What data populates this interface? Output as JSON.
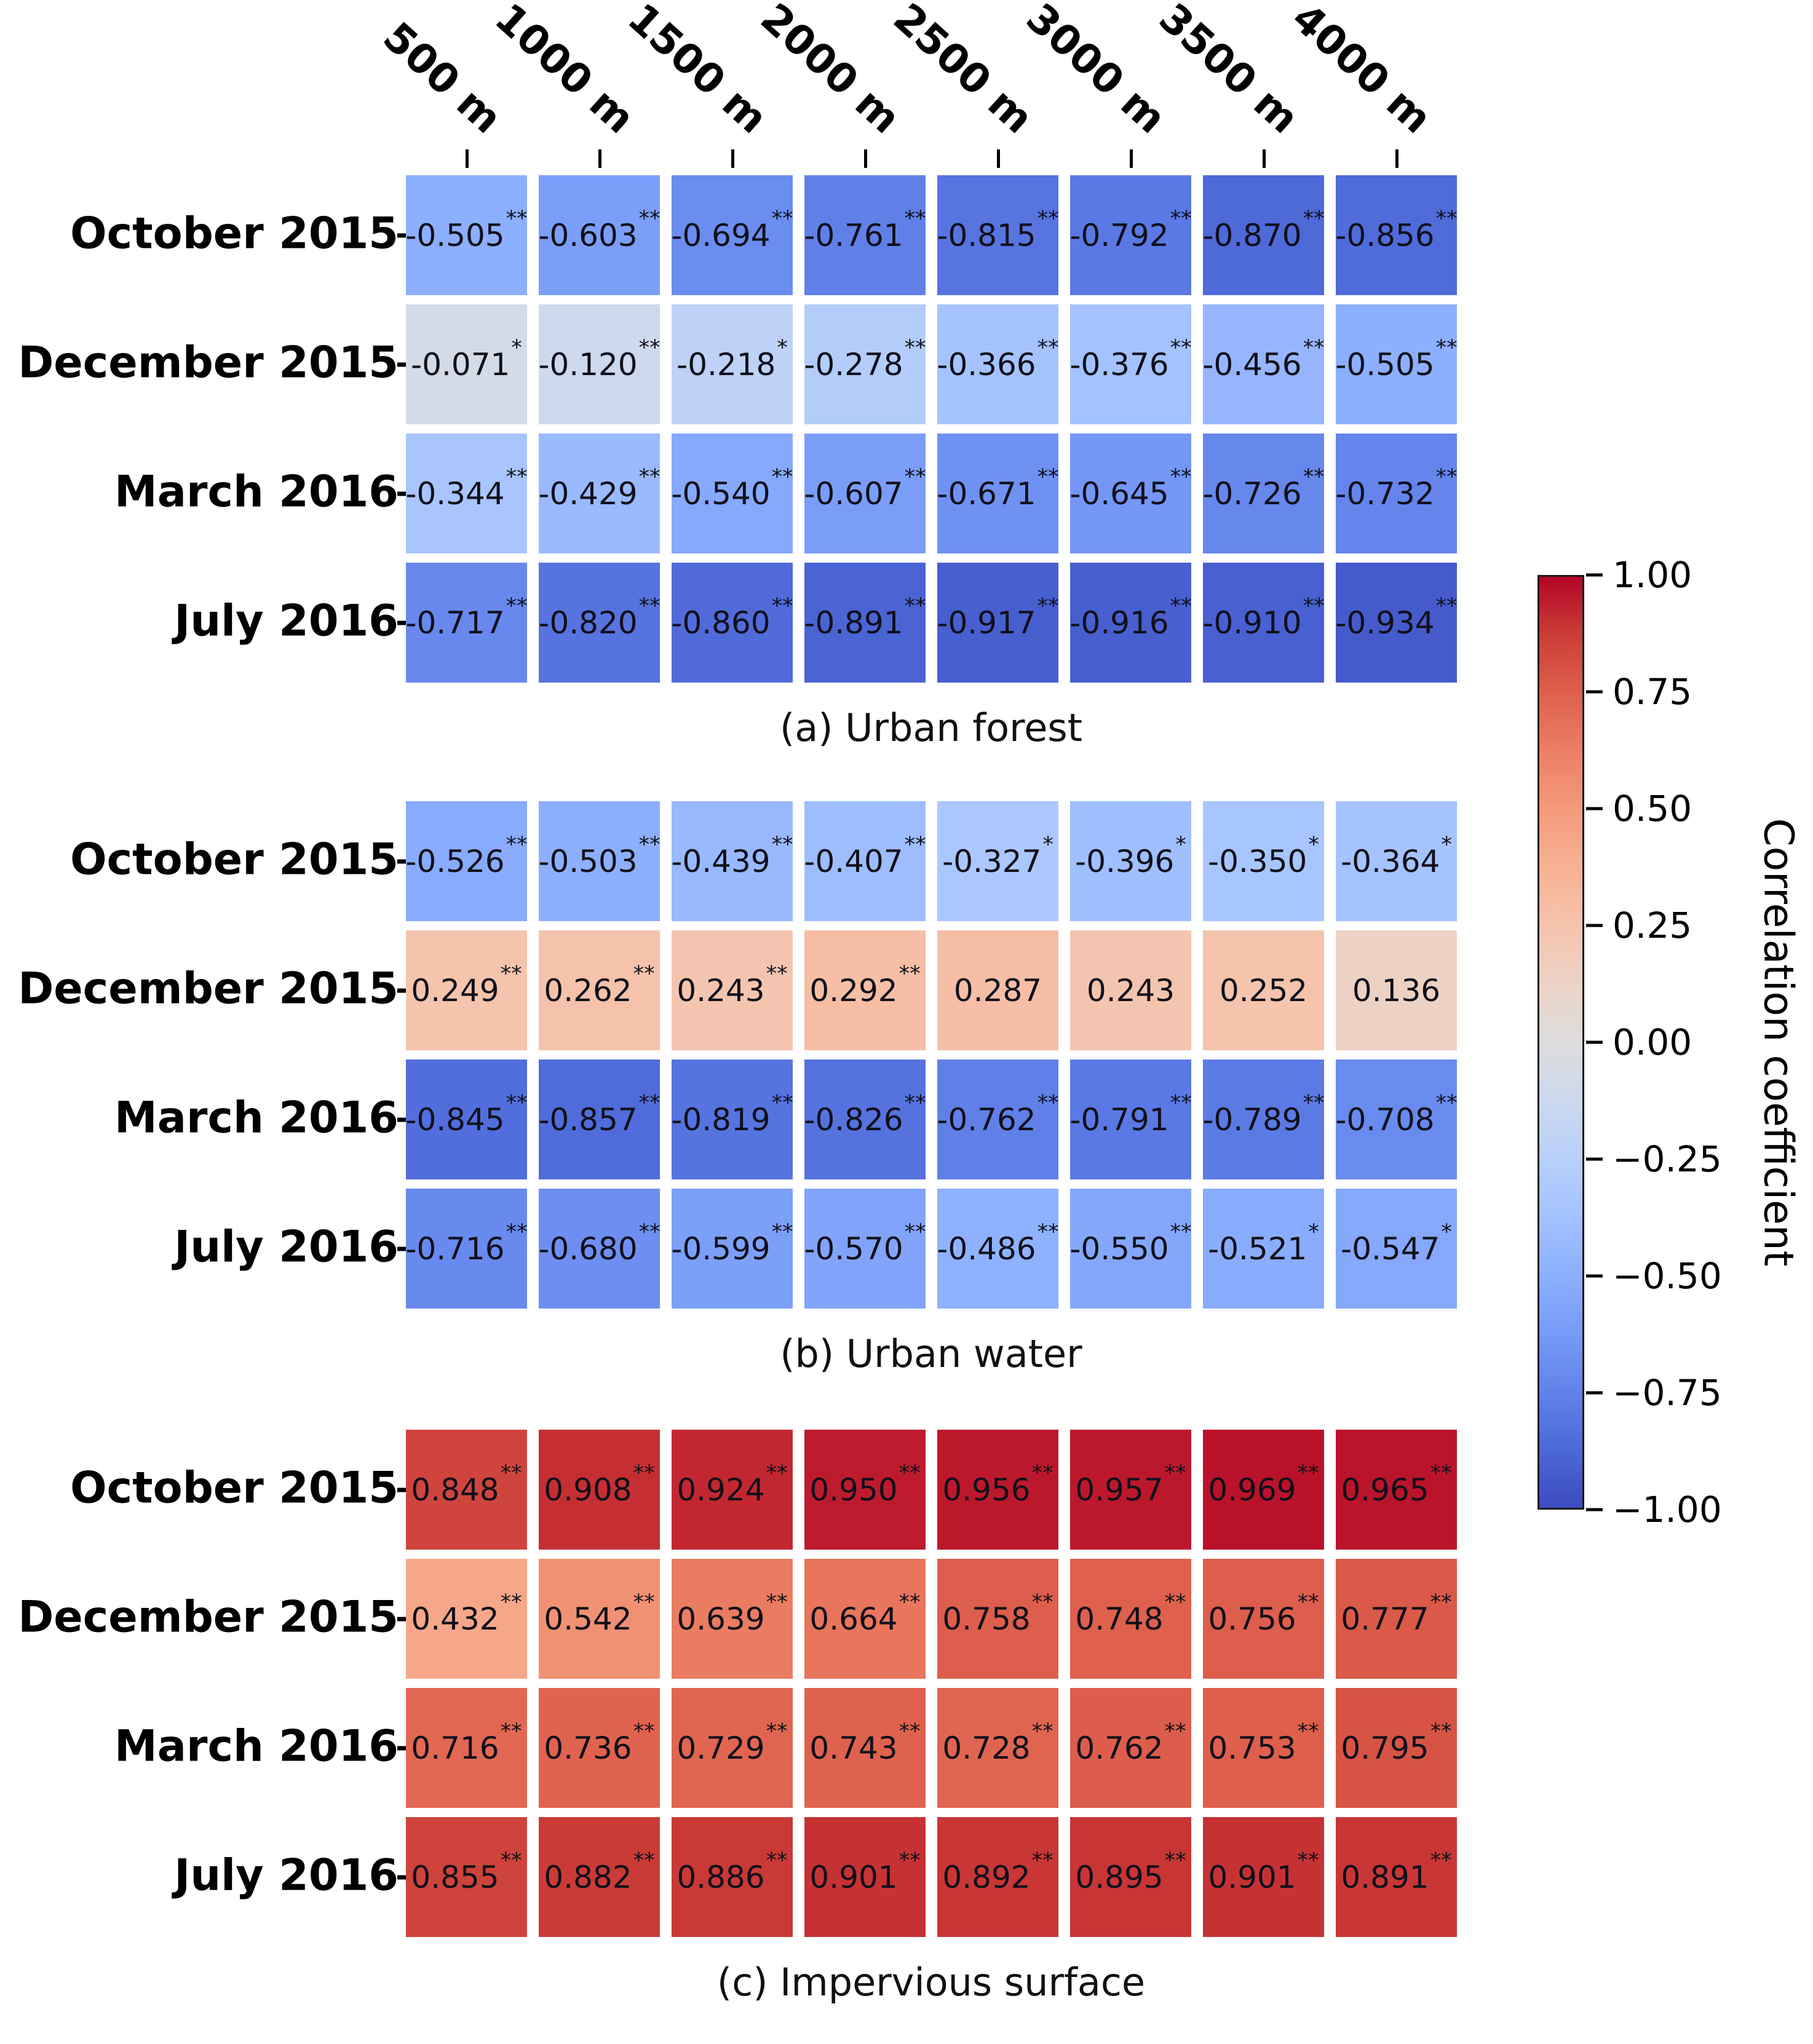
{
  "chart_data": {
    "type": "heatmap",
    "x_categories": [
      "500 m",
      "1000 m",
      "1500 m",
      "2000 m",
      "2500 m",
      "3000 m",
      "3500 m",
      "4000 m"
    ],
    "y_categories": [
      "October 2015",
      "December 2015",
      "March 2016",
      "July 2016"
    ],
    "value_range": [
      -1,
      1
    ],
    "grid": false,
    "colormap": "coolwarm",
    "colormap_stops": [
      [
        0.0,
        59,
        76,
        192
      ],
      [
        0.0625,
        77,
        104,
        215
      ],
      [
        0.125,
        98,
        130,
        234
      ],
      [
        0.1875,
        119,
        154,
        247
      ],
      [
        0.25,
        141,
        176,
        254
      ],
      [
        0.3125,
        163,
        194,
        255
      ],
      [
        0.375,
        184,
        208,
        249
      ],
      [
        0.4375,
        204,
        217,
        238
      ],
      [
        0.5,
        221,
        221,
        221
      ],
      [
        0.5625,
        236,
        211,
        197
      ],
      [
        0.625,
        245,
        196,
        173
      ],
      [
        0.6875,
        247,
        177,
        148
      ],
      [
        0.75,
        244,
        154,
        123
      ],
      [
        0.8125,
        236,
        127,
        99
      ],
      [
        0.875,
        222,
        96,
        77
      ],
      [
        0.9375,
        203,
        62,
        56
      ],
      [
        1.0,
        180,
        4,
        38
      ]
    ],
    "colorbar_label": "Correlation coefficient",
    "colorbar_ticks": [
      "1.00",
      "0.75",
      "0.50",
      "0.25",
      "0.00",
      "−0.25",
      "−0.50",
      "−0.75",
      "−1.00"
    ],
    "colorbar_tick_values": [
      1,
      0.75,
      0.5,
      0.25,
      0,
      -0.25,
      -0.5,
      -0.75,
      -1
    ],
    "panels": [
      {
        "caption": "(a) Urban forest",
        "values": [
          [
            -0.505,
            -0.603,
            -0.694,
            -0.761,
            -0.815,
            -0.792,
            -0.87,
            -0.856
          ],
          [
            -0.071,
            -0.12,
            -0.218,
            -0.278,
            -0.366,
            -0.376,
            -0.456,
            -0.505
          ],
          [
            -0.344,
            -0.429,
            -0.54,
            -0.607,
            -0.671,
            -0.645,
            -0.726,
            -0.732
          ],
          [
            -0.717,
            -0.82,
            -0.86,
            -0.891,
            -0.917,
            -0.916,
            -0.91,
            -0.934
          ]
        ],
        "significance": [
          [
            "**",
            "**",
            "**",
            "**",
            "**",
            "**",
            "**",
            "**"
          ],
          [
            "*",
            "**",
            "*",
            "**",
            "**",
            "**",
            "**",
            "**"
          ],
          [
            "**",
            "**",
            "**",
            "**",
            "**",
            "**",
            "**",
            "**"
          ],
          [
            "**",
            "**",
            "**",
            "**",
            "**",
            "**",
            "**",
            "**"
          ]
        ]
      },
      {
        "caption": "(b) Urban water",
        "values": [
          [
            -0.526,
            -0.503,
            -0.439,
            -0.407,
            -0.327,
            -0.396,
            -0.35,
            -0.364
          ],
          [
            0.249,
            0.262,
            0.243,
            0.292,
            0.287,
            0.243,
            0.252,
            0.136
          ],
          [
            -0.845,
            -0.857,
            -0.819,
            -0.826,
            -0.762,
            -0.791,
            -0.789,
            -0.708
          ],
          [
            -0.716,
            -0.68,
            -0.599,
            -0.57,
            -0.486,
            -0.55,
            -0.521,
            -0.547
          ]
        ],
        "significance": [
          [
            "**",
            "**",
            "**",
            "**",
            "*",
            "*",
            "*",
            "*"
          ],
          [
            "**",
            "**",
            "**",
            "**",
            "",
            "",
            "",
            ""
          ],
          [
            "**",
            "**",
            "**",
            "**",
            "**",
            "**",
            "**",
            "**"
          ],
          [
            "**",
            "**",
            "**",
            "**",
            "**",
            "**",
            "*",
            "*"
          ]
        ]
      },
      {
        "caption": "(c) Impervious surface",
        "values": [
          [
            0.848,
            0.908,
            0.924,
            0.95,
            0.956,
            0.957,
            0.969,
            0.965
          ],
          [
            0.432,
            0.542,
            0.639,
            0.664,
            0.758,
            0.748,
            0.756,
            0.777
          ],
          [
            0.716,
            0.736,
            0.729,
            0.743,
            0.728,
            0.762,
            0.753,
            0.795
          ],
          [
            0.855,
            0.882,
            0.886,
            0.901,
            0.892,
            0.895,
            0.901,
            0.891
          ]
        ],
        "significance": [
          [
            "**",
            "**",
            "**",
            "**",
            "**",
            "**",
            "**",
            "**"
          ],
          [
            "**",
            "**",
            "**",
            "**",
            "**",
            "**",
            "**",
            "**"
          ],
          [
            "**",
            "**",
            "**",
            "**",
            "**",
            "**",
            "**",
            "**"
          ],
          [
            "**",
            "**",
            "**",
            "**",
            "**",
            "**",
            "**",
            "**"
          ]
        ]
      }
    ]
  }
}
